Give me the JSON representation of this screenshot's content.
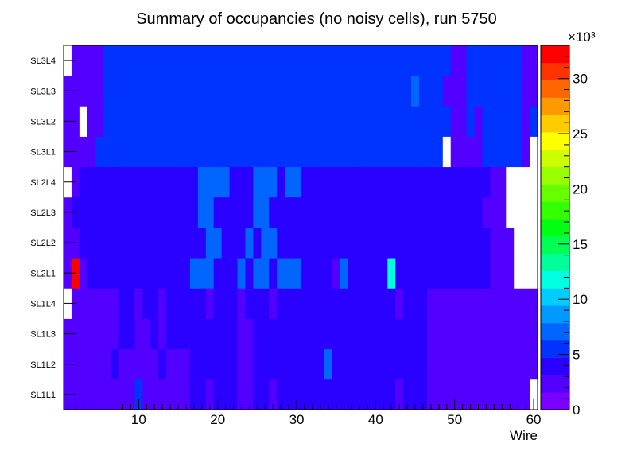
{
  "chart_data": {
    "type": "heatmap",
    "title": "Summary of occupancies (no noisy cells), run 5750",
    "xlabel": "Wire",
    "ylabel": "",
    "xlim": [
      0.5,
      60.5
    ],
    "x_ticks": [
      10,
      20,
      30,
      40,
      50,
      60
    ],
    "y_categories": [
      "SL1L1",
      "SL1L2",
      "SL1L3",
      "SL1L4",
      "SL2L1",
      "SL2L2",
      "SL2L3",
      "SL2L4",
      "SL3L1",
      "SL3L2",
      "SL3L3",
      "SL3L4"
    ],
    "z_range": [
      0,
      33000
    ],
    "colorbar": {
      "exponent_label": "×10³",
      "ticks": [
        0,
        5,
        10,
        15,
        20,
        25,
        30
      ],
      "palette": [
        "#7a00ff",
        "#5200ff",
        "#2a00ff",
        "#0033ff",
        "#0066ff",
        "#0099ff",
        "#00ccff",
        "#00ffe0",
        "#00ff99",
        "#00ff55",
        "#00ff11",
        "#33ff00",
        "#66ff00",
        "#99ff00",
        "#ccff00",
        "#ffff00",
        "#ffcc00",
        "#ff9900",
        "#ff6600",
        "#ff3300",
        "#ff0000"
      ]
    },
    "grid": false,
    "legend": "none",
    "baseline_values_by_row": {
      "SL1L1": 4500,
      "SL1L2": 4500,
      "SL1L3": 4500,
      "SL1L4": 4500,
      "SL2L1": 4500,
      "SL2L2": 4500,
      "SL2L3": 4500,
      "SL2L4": 4500,
      "SL3L1": 5200,
      "SL3L2": 5200,
      "SL3L3": 5200,
      "SL3L4": 5200
    },
    "cells_note_values": "Cells not listed take the row baseline value; null means empty (white).",
    "cells": [
      {
        "row": "SL1L1",
        "wire": 1,
        "value": 1600
      },
      {
        "row": "SL1L1",
        "wire": 2,
        "value": 1600
      },
      {
        "row": "SL1L1",
        "wire": 3,
        "value": 3000
      },
      {
        "row": "SL1L1",
        "wire": 4,
        "value": 3000
      },
      {
        "row": "SL1L1",
        "wire": 5,
        "value": 3000
      },
      {
        "row": "SL1L1",
        "wire": 6,
        "value": 3000
      },
      {
        "row": "SL1L1",
        "wire": 7,
        "value": 3000
      },
      {
        "row": "SL1L1",
        "wire": 8,
        "value": 3000
      },
      {
        "row": "SL1L1",
        "wire": 9,
        "value": 3000
      },
      {
        "row": "SL1L1",
        "wire": 10,
        "value": 4800
      },
      {
        "row": "SL1L1",
        "wire": 11,
        "value": 3000
      },
      {
        "row": "SL1L1",
        "wire": 12,
        "value": 3000
      },
      {
        "row": "SL1L1",
        "wire": 13,
        "value": 3000
      },
      {
        "row": "SL1L1",
        "wire": 14,
        "value": 3000
      },
      {
        "row": "SL1L1",
        "wire": 15,
        "value": 3000
      },
      {
        "row": "SL1L1",
        "wire": 16,
        "value": 3000
      },
      {
        "row": "SL1L1",
        "wire": 19,
        "value": 3000
      },
      {
        "row": "SL1L1",
        "wire": 23,
        "value": 3000
      },
      {
        "row": "SL1L1",
        "wire": 24,
        "value": 3000
      },
      {
        "row": "SL1L1",
        "wire": 27,
        "value": 3000
      },
      {
        "row": "SL1L1",
        "wire": 43,
        "value": 3000
      },
      {
        "row": "SL1L1",
        "wire": 47,
        "value": 3000
      },
      {
        "row": "SL1L1",
        "wire": 48,
        "value": 3000
      },
      {
        "row": "SL1L1",
        "wire": 49,
        "value": 3000
      },
      {
        "row": "SL1L1",
        "wire": 50,
        "value": 3000
      },
      {
        "row": "SL1L1",
        "wire": 51,
        "value": 3000
      },
      {
        "row": "SL1L1",
        "wire": 52,
        "value": 3000
      },
      {
        "row": "SL1L1",
        "wire": 53,
        "value": 3000
      },
      {
        "row": "SL1L1",
        "wire": 54,
        "value": 3000
      },
      {
        "row": "SL1L1",
        "wire": 55,
        "value": 1600
      },
      {
        "row": "SL1L1",
        "wire": 56,
        "value": 1600
      },
      {
        "row": "SL1L1",
        "wire": 57,
        "value": 1600
      },
      {
        "row": "SL1L1",
        "wire": 58,
        "value": 1600
      },
      {
        "row": "SL1L1",
        "wire": 59,
        "value": 1600
      },
      {
        "row": "SL1L1",
        "wire": 60,
        "value": null
      },
      {
        "row": "SL1L2",
        "wire": 1,
        "value": 1600
      },
      {
        "row": "SL1L2",
        "wire": 2,
        "value": 1600
      },
      {
        "row": "SL1L2",
        "wire": 3,
        "value": 3000
      },
      {
        "row": "SL1L2",
        "wire": 4,
        "value": 3000
      },
      {
        "row": "SL1L2",
        "wire": 5,
        "value": 3000
      },
      {
        "row": "SL1L2",
        "wire": 6,
        "value": 3000
      },
      {
        "row": "SL1L2",
        "wire": 8,
        "value": 3000
      },
      {
        "row": "SL1L2",
        "wire": 9,
        "value": 3000
      },
      {
        "row": "SL1L2",
        "wire": 10,
        "value": 3000
      },
      {
        "row": "SL1L2",
        "wire": 11,
        "value": 3000
      },
      {
        "row": "SL1L2",
        "wire": 12,
        "value": 3000
      },
      {
        "row": "SL1L2",
        "wire": 14,
        "value": 3000
      },
      {
        "row": "SL1L2",
        "wire": 15,
        "value": 3000
      },
      {
        "row": "SL1L2",
        "wire": 16,
        "value": 3000
      },
      {
        "row": "SL1L2",
        "wire": 23,
        "value": 3000
      },
      {
        "row": "SL1L2",
        "wire": 24,
        "value": 3000
      },
      {
        "row": "SL1L2",
        "wire": 34,
        "value": 6500
      },
      {
        "row": "SL1L2",
        "wire": 47,
        "value": 3000
      },
      {
        "row": "SL1L2",
        "wire": 48,
        "value": 3000
      },
      {
        "row": "SL1L2",
        "wire": 49,
        "value": 3000
      },
      {
        "row": "SL1L2",
        "wire": 50,
        "value": 3000
      },
      {
        "row": "SL1L2",
        "wire": 51,
        "value": 3000
      },
      {
        "row": "SL1L2",
        "wire": 52,
        "value": 3000
      },
      {
        "row": "SL1L2",
        "wire": 53,
        "value": 3000
      },
      {
        "row": "SL1L2",
        "wire": 54,
        "value": 3000
      },
      {
        "row": "SL1L2",
        "wire": 55,
        "value": 3000
      },
      {
        "row": "SL1L2",
        "wire": 56,
        "value": 1600
      },
      {
        "row": "SL1L2",
        "wire": 57,
        "value": 1600
      },
      {
        "row": "SL1L2",
        "wire": 58,
        "value": 1600
      },
      {
        "row": "SL1L2",
        "wire": 59,
        "value": 1600
      },
      {
        "row": "SL1L2",
        "wire": 60,
        "value": 1600
      },
      {
        "row": "SL1L3",
        "wire": 1,
        "value": 1600
      },
      {
        "row": "SL1L3",
        "wire": 2,
        "value": 3000
      },
      {
        "row": "SL1L3",
        "wire": 3,
        "value": 3000
      },
      {
        "row": "SL1L3",
        "wire": 4,
        "value": 3000
      },
      {
        "row": "SL1L3",
        "wire": 5,
        "value": 3000
      },
      {
        "row": "SL1L3",
        "wire": 6,
        "value": 3000
      },
      {
        "row": "SL1L3",
        "wire": 7,
        "value": 3000
      },
      {
        "row": "SL1L3",
        "wire": 10,
        "value": 3000
      },
      {
        "row": "SL1L3",
        "wire": 11,
        "value": 3000
      },
      {
        "row": "SL1L3",
        "wire": 13,
        "value": 3000
      },
      {
        "row": "SL1L3",
        "wire": 23,
        "value": 3000
      },
      {
        "row": "SL1L3",
        "wire": 24,
        "value": 3000
      },
      {
        "row": "SL1L3",
        "wire": 47,
        "value": 3000
      },
      {
        "row": "SL1L3",
        "wire": 48,
        "value": 3000
      },
      {
        "row": "SL1L3",
        "wire": 49,
        "value": 3000
      },
      {
        "row": "SL1L3",
        "wire": 50,
        "value": 3000
      },
      {
        "row": "SL1L3",
        "wire": 51,
        "value": 3000
      },
      {
        "row": "SL1L3",
        "wire": 52,
        "value": 3000
      },
      {
        "row": "SL1L3",
        "wire": 53,
        "value": 3000
      },
      {
        "row": "SL1L3",
        "wire": 54,
        "value": 3000
      },
      {
        "row": "SL1L3",
        "wire": 55,
        "value": 3000
      },
      {
        "row": "SL1L3",
        "wire": 56,
        "value": 1600
      },
      {
        "row": "SL1L3",
        "wire": 57,
        "value": 1600
      },
      {
        "row": "SL1L3",
        "wire": 58,
        "value": 1600
      },
      {
        "row": "SL1L3",
        "wire": 59,
        "value": 1600
      },
      {
        "row": "SL1L3",
        "wire": 60,
        "value": 1600
      },
      {
        "row": "SL1L4",
        "wire": 1,
        "value": null
      },
      {
        "row": "SL1L4",
        "wire": 2,
        "value": 1600
      },
      {
        "row": "SL1L4",
        "wire": 3,
        "value": 3000
      },
      {
        "row": "SL1L4",
        "wire": 4,
        "value": 3000
      },
      {
        "row": "SL1L4",
        "wire": 5,
        "value": 3000
      },
      {
        "row": "SL1L4",
        "wire": 6,
        "value": 3000
      },
      {
        "row": "SL1L4",
        "wire": 7,
        "value": 3000
      },
      {
        "row": "SL1L4",
        "wire": 10,
        "value": 3000
      },
      {
        "row": "SL1L4",
        "wire": 13,
        "value": 3000
      },
      {
        "row": "SL1L4",
        "wire": 19,
        "value": 3000
      },
      {
        "row": "SL1L4",
        "wire": 23,
        "value": 3000
      },
      {
        "row": "SL1L4",
        "wire": 27,
        "value": 3000
      },
      {
        "row": "SL1L4",
        "wire": 43,
        "value": 3000
      },
      {
        "row": "SL1L4",
        "wire": 47,
        "value": 3000
      },
      {
        "row": "SL1L4",
        "wire": 48,
        "value": 3000
      },
      {
        "row": "SL1L4",
        "wire": 49,
        "value": 3000
      },
      {
        "row": "SL1L4",
        "wire": 50,
        "value": 3000
      },
      {
        "row": "SL1L4",
        "wire": 51,
        "value": 3000
      },
      {
        "row": "SL1L4",
        "wire": 52,
        "value": 3000
      },
      {
        "row": "SL1L4",
        "wire": 53,
        "value": 3000
      },
      {
        "row": "SL1L4",
        "wire": 54,
        "value": 3000
      },
      {
        "row": "SL1L4",
        "wire": 55,
        "value": 1600
      },
      {
        "row": "SL1L4",
        "wire": 56,
        "value": 3000
      },
      {
        "row": "SL1L4",
        "wire": 57,
        "value": 3000
      },
      {
        "row": "SL1L4",
        "wire": 58,
        "value": 1600
      },
      {
        "row": "SL1L4",
        "wire": 59,
        "value": 1600
      },
      {
        "row": "SL1L4",
        "wire": 60,
        "value": 1600
      },
      {
        "row": "SL2L1",
        "wire": 1,
        "value": 1600
      },
      {
        "row": "SL2L1",
        "wire": 2,
        "value": 33000
      },
      {
        "row": "SL2L1",
        "wire": 3,
        "value": 1600
      },
      {
        "row": "SL2L1",
        "wire": 17,
        "value": 6500
      },
      {
        "row": "SL2L1",
        "wire": 18,
        "value": 6500
      },
      {
        "row": "SL2L1",
        "wire": 19,
        "value": 6500
      },
      {
        "row": "SL2L1",
        "wire": 23,
        "value": 6500
      },
      {
        "row": "SL2L1",
        "wire": 25,
        "value": 6500
      },
      {
        "row": "SL2L1",
        "wire": 26,
        "value": 6500
      },
      {
        "row": "SL2L1",
        "wire": 28,
        "value": 6500
      },
      {
        "row": "SL2L1",
        "wire": 29,
        "value": 6500
      },
      {
        "row": "SL2L1",
        "wire": 30,
        "value": 6500
      },
      {
        "row": "SL2L1",
        "wire": 35,
        "value": 1600
      },
      {
        "row": "SL2L1",
        "wire": 36,
        "value": 6500
      },
      {
        "row": "SL2L1",
        "wire": 42,
        "value": 12000
      },
      {
        "row": "SL2L1",
        "wire": 55,
        "value": 3000
      },
      {
        "row": "SL2L1",
        "wire": 56,
        "value": 1600
      },
      {
        "row": "SL2L1",
        "wire": 57,
        "value": 3000
      },
      {
        "row": "SL2L1",
        "wire": 58,
        "value": null
      },
      {
        "row": "SL2L1",
        "wire": 59,
        "value": null
      },
      {
        "row": "SL2L1",
        "wire": 60,
        "value": null
      },
      {
        "row": "SL2L2",
        "wire": 1,
        "value": 1600
      },
      {
        "row": "SL2L2",
        "wire": 2,
        "value": 3000
      },
      {
        "row": "SL2L2",
        "wire": 19,
        "value": 6500
      },
      {
        "row": "SL2L2",
        "wire": 20,
        "value": 6500
      },
      {
        "row": "SL2L2",
        "wire": 24,
        "value": 6500
      },
      {
        "row": "SL2L2",
        "wire": 26,
        "value": 6500
      },
      {
        "row": "SL2L2",
        "wire": 27,
        "value": 6500
      },
      {
        "row": "SL2L2",
        "wire": 55,
        "value": 3000
      },
      {
        "row": "SL2L2",
        "wire": 56,
        "value": 1600
      },
      {
        "row": "SL2L2",
        "wire": 57,
        "value": 3000
      },
      {
        "row": "SL2L2",
        "wire": 58,
        "value": null
      },
      {
        "row": "SL2L2",
        "wire": 59,
        "value": null
      },
      {
        "row": "SL2L2",
        "wire": 60,
        "value": null
      },
      {
        "row": "SL2L3",
        "wire": 1,
        "value": 3000
      },
      {
        "row": "SL2L3",
        "wire": 18,
        "value": 6500
      },
      {
        "row": "SL2L3",
        "wire": 19,
        "value": 6500
      },
      {
        "row": "SL2L3",
        "wire": 25,
        "value": 6500
      },
      {
        "row": "SL2L3",
        "wire": 26,
        "value": 6500
      },
      {
        "row": "SL2L3",
        "wire": 54,
        "value": 3000
      },
      {
        "row": "SL2L3",
        "wire": 55,
        "value": 3000
      },
      {
        "row": "SL2L3",
        "wire": 56,
        "value": 3000
      },
      {
        "row": "SL2L3",
        "wire": 57,
        "value": null
      },
      {
        "row": "SL2L3",
        "wire": 58,
        "value": null
      },
      {
        "row": "SL2L3",
        "wire": 59,
        "value": null
      },
      {
        "row": "SL2L3",
        "wire": 60,
        "value": null
      },
      {
        "row": "SL2L4",
        "wire": 1,
        "value": null
      },
      {
        "row": "SL2L4",
        "wire": 2,
        "value": 1600
      },
      {
        "row": "SL2L4",
        "wire": 18,
        "value": 6500
      },
      {
        "row": "SL2L4",
        "wire": 19,
        "value": 6500
      },
      {
        "row": "SL2L4",
        "wire": 20,
        "value": 6500
      },
      {
        "row": "SL2L4",
        "wire": 21,
        "value": 6500
      },
      {
        "row": "SL2L4",
        "wire": 25,
        "value": 6500
      },
      {
        "row": "SL2L4",
        "wire": 26,
        "value": 6500
      },
      {
        "row": "SL2L4",
        "wire": 27,
        "value": 6500
      },
      {
        "row": "SL2L4",
        "wire": 29,
        "value": 6500
      },
      {
        "row": "SL2L4",
        "wire": 30,
        "value": 6500
      },
      {
        "row": "SL2L4",
        "wire": 55,
        "value": 3000
      },
      {
        "row": "SL2L4",
        "wire": 56,
        "value": 3000
      },
      {
        "row": "SL2L4",
        "wire": 57,
        "value": null
      },
      {
        "row": "SL2L4",
        "wire": 58,
        "value": null
      },
      {
        "row": "SL2L4",
        "wire": 59,
        "value": null
      },
      {
        "row": "SL2L4",
        "wire": 60,
        "value": null
      },
      {
        "row": "SL3L1",
        "wire": 1,
        "value": 1600
      },
      {
        "row": "SL3L1",
        "wire": 2,
        "value": 1600
      },
      {
        "row": "SL3L1",
        "wire": 3,
        "value": 1600
      },
      {
        "row": "SL3L1",
        "wire": 4,
        "value": 3000
      },
      {
        "row": "SL3L1",
        "wire": 49,
        "value": null
      },
      {
        "row": "SL3L1",
        "wire": 50,
        "value": 1600
      },
      {
        "row": "SL3L1",
        "wire": 51,
        "value": 3000
      },
      {
        "row": "SL3L1",
        "wire": 52,
        "value": 3000
      },
      {
        "row": "SL3L1",
        "wire": 53,
        "value": 3000
      },
      {
        "row": "SL3L1",
        "wire": 59,
        "value": 1600
      },
      {
        "row": "SL3L1",
        "wire": 60,
        "value": null
      },
      {
        "row": "SL3L2",
        "wire": 1,
        "value": 1600
      },
      {
        "row": "SL3L2",
        "wire": 2,
        "value": 1600
      },
      {
        "row": "SL3L2",
        "wire": 3,
        "value": null
      },
      {
        "row": "SL3L2",
        "wire": 4,
        "value": 1600
      },
      {
        "row": "SL3L2",
        "wire": 5,
        "value": 3000
      },
      {
        "row": "SL3L2",
        "wire": 50,
        "value": 1600
      },
      {
        "row": "SL3L2",
        "wire": 51,
        "value": 3000
      },
      {
        "row": "SL3L2",
        "wire": 53,
        "value": 3000
      },
      {
        "row": "SL3L2",
        "wire": 59,
        "value": 1600
      },
      {
        "row": "SL3L3",
        "wire": 1,
        "value": 3000
      },
      {
        "row": "SL3L3",
        "wire": 2,
        "value": 3000
      },
      {
        "row": "SL3L3",
        "wire": 3,
        "value": 1600
      },
      {
        "row": "SL3L3",
        "wire": 4,
        "value": 3000
      },
      {
        "row": "SL3L3",
        "wire": 5,
        "value": 3000
      },
      {
        "row": "SL3L3",
        "wire": 45,
        "value": 6500
      },
      {
        "row": "SL3L3",
        "wire": 49,
        "value": 1600
      },
      {
        "row": "SL3L3",
        "wire": 50,
        "value": 1600
      },
      {
        "row": "SL3L3",
        "wire": 51,
        "value": 3000
      },
      {
        "row": "SL3L3",
        "wire": 59,
        "value": 1600
      },
      {
        "row": "SL3L3",
        "wire": 60,
        "value": 3000
      },
      {
        "row": "SL3L4",
        "wire": 1,
        "value": null
      },
      {
        "row": "SL3L4",
        "wire": 2,
        "value": 3000
      },
      {
        "row": "SL3L4",
        "wire": 3,
        "value": 1600
      },
      {
        "row": "SL3L4",
        "wire": 4,
        "value": 3000
      },
      {
        "row": "SL3L4",
        "wire": 5,
        "value": 1600
      },
      {
        "row": "SL3L4",
        "wire": 50,
        "value": 1600
      },
      {
        "row": "SL3L4",
        "wire": 51,
        "value": 3000
      },
      {
        "row": "SL3L4",
        "wire": 59,
        "value": 1600
      },
      {
        "row": "SL3L4",
        "wire": 60,
        "value": 3000
      }
    ]
  }
}
